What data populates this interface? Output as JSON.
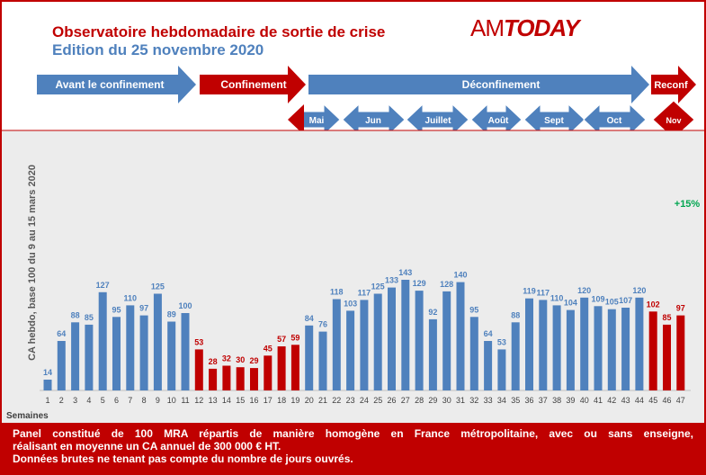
{
  "header": {
    "title": "Observatoire hebdomadaire de sortie de crise",
    "subtitle": "Edition du 25 novembre 2020",
    "logo_am": "AM",
    "logo_today": "TODAY"
  },
  "phases": [
    {
      "label": "Avant le confinement",
      "color": "#4f81bd"
    },
    {
      "label": "Confinement",
      "color": "#c00000"
    },
    {
      "label": "Déconfinement",
      "color": "#4f81bd"
    },
    {
      "label": "Reconf",
      "color": "#c00000"
    }
  ],
  "months": [
    {
      "label": "Mai",
      "color": "#4f81bd",
      "accent": "#c00000"
    },
    {
      "label": "Jun",
      "color": "#4f81bd"
    },
    {
      "label": "Juillet",
      "color": "#4f81bd"
    },
    {
      "label": "Août",
      "color": "#4f81bd"
    },
    {
      "label": "Sept",
      "color": "#4f81bd"
    },
    {
      "label": "Oct",
      "color": "#4f81bd"
    },
    {
      "label": "Nov",
      "color": "#c00000"
    }
  ],
  "chart_data": {
    "type": "bar",
    "categories": [
      "1",
      "2",
      "3",
      "4",
      "5",
      "6",
      "7",
      "8",
      "9",
      "10",
      "11",
      "12",
      "13",
      "14",
      "15",
      "16",
      "17",
      "18",
      "19",
      "20",
      "21",
      "22",
      "23",
      "24",
      "25",
      "26",
      "27",
      "28",
      "29",
      "30",
      "31",
      "32",
      "33",
      "34",
      "35",
      "36",
      "37",
      "38",
      "39",
      "40",
      "41",
      "42",
      "43",
      "44",
      "45",
      "46",
      "47"
    ],
    "values": [
      14,
      64,
      88,
      85,
      127,
      95,
      110,
      97,
      125,
      89,
      100,
      53,
      28,
      32,
      30,
      29,
      45,
      57,
      59,
      84,
      76,
      118,
      103,
      117,
      125,
      133,
      143,
      129,
      92,
      128,
      140,
      95,
      64,
      53,
      88,
      119,
      117,
      110,
      104,
      120,
      109,
      105,
      107,
      120,
      102,
      85,
      97
    ],
    "bar_colors": [
      "#4f81bd",
      "#4f81bd",
      "#4f81bd",
      "#4f81bd",
      "#4f81bd",
      "#4f81bd",
      "#4f81bd",
      "#4f81bd",
      "#4f81bd",
      "#4f81bd",
      "#4f81bd",
      "#c00000",
      "#c00000",
      "#c00000",
      "#c00000",
      "#c00000",
      "#c00000",
      "#c00000",
      "#c00000",
      "#4f81bd",
      "#4f81bd",
      "#4f81bd",
      "#4f81bd",
      "#4f81bd",
      "#4f81bd",
      "#4f81bd",
      "#4f81bd",
      "#4f81bd",
      "#4f81bd",
      "#4f81bd",
      "#4f81bd",
      "#4f81bd",
      "#4f81bd",
      "#4f81bd",
      "#4f81bd",
      "#4f81bd",
      "#4f81bd",
      "#4f81bd",
      "#4f81bd",
      "#4f81bd",
      "#4f81bd",
      "#4f81bd",
      "#4f81bd",
      "#4f81bd",
      "#c00000",
      "#c00000",
      "#c00000"
    ],
    "ylabel": "CA hebdo, base 100 du 9 au 15 mars 2020",
    "xlabel": "Semaines",
    "ylim": [
      0,
      150
    ],
    "grid": false,
    "annotation": {
      "text": "+15%",
      "color": "#00a550"
    }
  },
  "footer": {
    "line1": "Panel constitué de 100 MRA répartis de manière homogène en France métropolitaine, avec ou sans enseigne,",
    "line2": "réalisant en moyenne un CA annuel de 300 000 € HT.",
    "line3": "Données brutes ne tenant pas compte du nombre de jours ouvrés."
  },
  "colors": {
    "brand_red": "#c00000",
    "bar_blue": "#4f81bd",
    "label_blue": "#4f81bd",
    "accent_green": "#00a550"
  }
}
